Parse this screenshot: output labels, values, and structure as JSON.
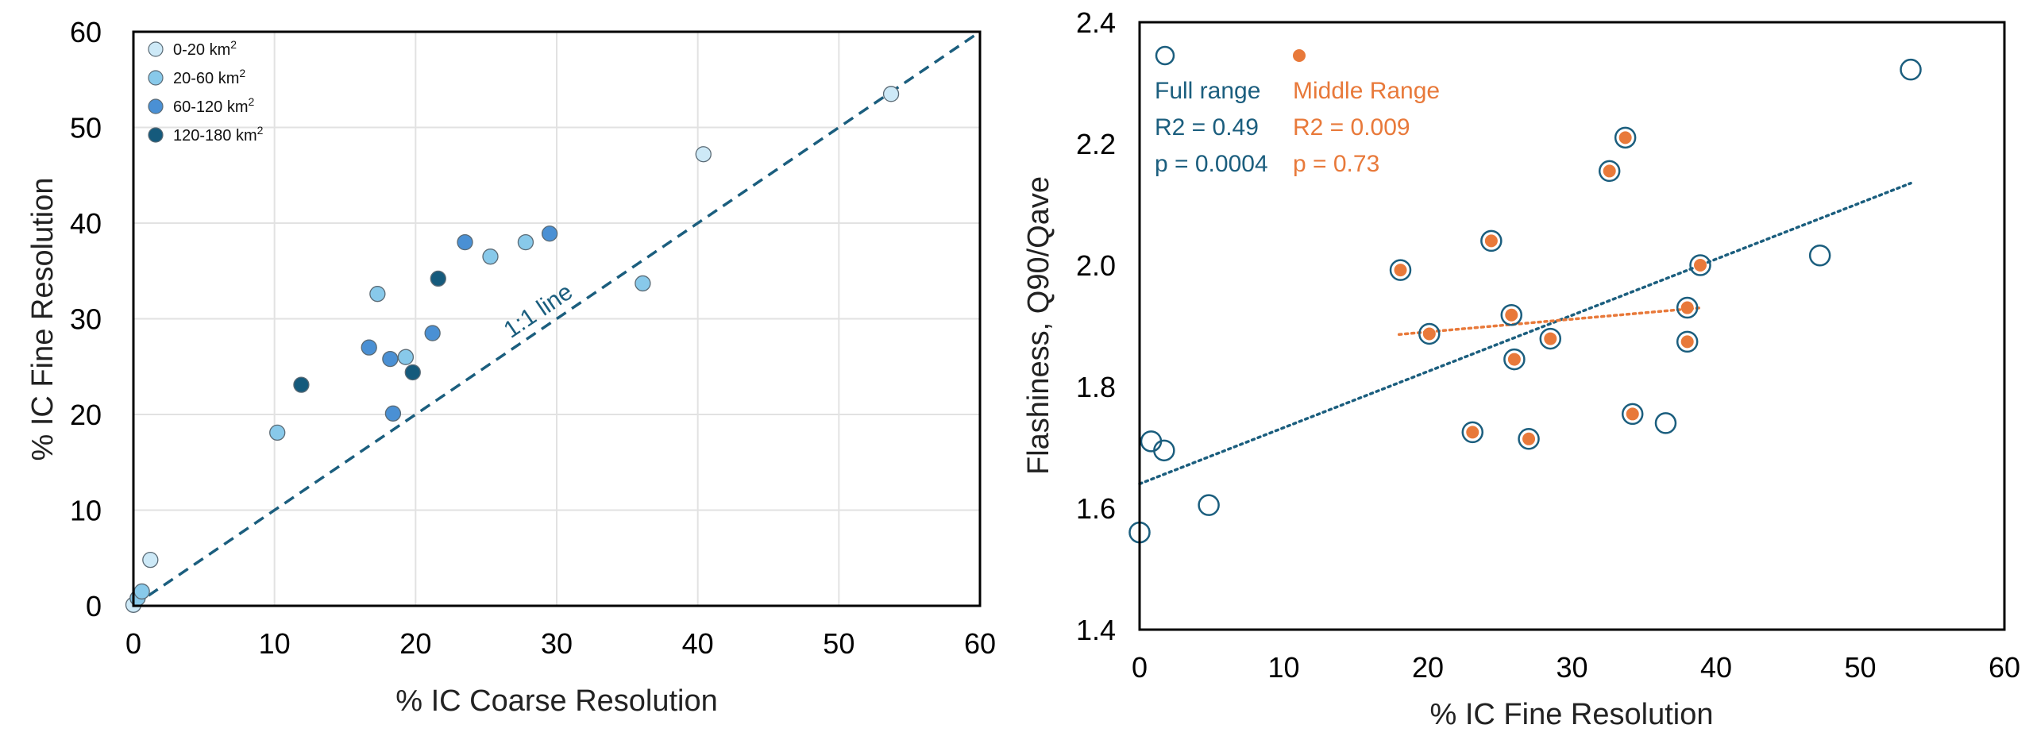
{
  "chart_data": [
    {
      "type": "scatter",
      "xlabel": "% IC Coarse Resolution",
      "ylabel": "% IC Fine Resolution",
      "xlim": [
        0,
        60
      ],
      "ylim": [
        0,
        60
      ],
      "xticks": [
        0,
        10,
        20,
        30,
        40,
        50,
        60
      ],
      "yticks": [
        0,
        10,
        20,
        30,
        40,
        50,
        60
      ],
      "grid": true,
      "legend_position": "top-left",
      "reference_line": {
        "label": "1:1 line",
        "from": [
          0,
          0
        ],
        "to": [
          60,
          60
        ],
        "color": "#1b5e7e"
      },
      "series": [
        {
          "name": "0-20 km",
          "superscript": "2",
          "color": "#cde9f7",
          "points": [
            [
              0.0,
              0.1
            ],
            [
              1.2,
              4.8
            ],
            [
              40.4,
              47.2
            ],
            [
              53.7,
              53.5
            ]
          ]
        },
        {
          "name": "20-60 km",
          "superscript": "2",
          "color": "#88c9ea",
          "points": [
            [
              0.3,
              0.8
            ],
            [
              0.6,
              1.5
            ],
            [
              10.2,
              18.1
            ],
            [
              17.3,
              32.6
            ],
            [
              19.3,
              26.0
            ],
            [
              25.3,
              36.5
            ],
            [
              27.8,
              38.0
            ],
            [
              36.1,
              33.7
            ]
          ]
        },
        {
          "name": "60-120 km",
          "superscript": "2",
          "color": "#4a90d4",
          "points": [
            [
              16.7,
              27.0
            ],
            [
              18.2,
              25.8
            ],
            [
              18.4,
              20.1
            ],
            [
              21.2,
              28.5
            ],
            [
              23.5,
              38.0
            ],
            [
              29.5,
              38.9
            ]
          ]
        },
        {
          "name": "120-180 km",
          "superscript": "2",
          "color": "#155a7c",
          "points": [
            [
              11.9,
              23.1
            ],
            [
              19.8,
              24.4
            ],
            [
              21.6,
              34.2
            ]
          ]
        }
      ]
    },
    {
      "type": "scatter",
      "xlabel": "% IC Fine Resolution",
      "ylabel": "Flashiness, Q90/Qave",
      "xlim": [
        0,
        60
      ],
      "ylim": [
        1.4,
        2.4
      ],
      "xticks": [
        0,
        10,
        20,
        30,
        40,
        50,
        60
      ],
      "yticks": [
        1.4,
        1.6,
        1.8,
        2.0,
        2.2,
        2.4
      ],
      "ytick_labels": [
        "1.4",
        "1.6",
        "1.8",
        "2.0",
        "2.2",
        "2.4"
      ],
      "grid": false,
      "series": [
        {
          "name": "Full range",
          "color": "#1b5e7e",
          "marker": "open-circle",
          "r2_label": "R2 = 0.49",
          "p_label": "p = 0.0004",
          "trend": {
            "from": [
              0,
              1.64
            ],
            "to": [
              53.5,
              2.135
            ]
          },
          "points": [
            [
              0.0,
              1.56
            ],
            [
              0.8,
              1.71
            ],
            [
              1.7,
              1.695
            ],
            [
              4.8,
              1.605
            ],
            [
              18.1,
              1.992
            ],
            [
              20.1,
              1.887
            ],
            [
              23.1,
              1.725
            ],
            [
              24.4,
              2.04
            ],
            [
              25.8,
              1.918
            ],
            [
              26.0,
              1.845
            ],
            [
              27.0,
              1.714
            ],
            [
              28.5,
              1.879
            ],
            [
              32.6,
              2.155
            ],
            [
              33.7,
              2.21
            ],
            [
              34.2,
              1.755
            ],
            [
              36.5,
              1.74
            ],
            [
              38.0,
              1.874
            ],
            [
              38.0,
              1.93
            ],
            [
              38.9,
              2.0
            ],
            [
              47.2,
              2.016
            ],
            [
              53.5,
              2.322
            ]
          ]
        },
        {
          "name": "Middle Range",
          "color": "#e8793a",
          "marker": "filled-circle",
          "r2_label": "R2 = 0.009",
          "p_label": "p = 0.73",
          "trend": {
            "from": [
              18.0,
              1.886
            ],
            "to": [
              39.0,
              1.93
            ]
          },
          "points": [
            [
              18.1,
              1.992
            ],
            [
              20.1,
              1.887
            ],
            [
              23.1,
              1.725
            ],
            [
              24.4,
              2.04
            ],
            [
              25.8,
              1.918
            ],
            [
              26.0,
              1.845
            ],
            [
              27.0,
              1.714
            ],
            [
              28.5,
              1.879
            ],
            [
              32.6,
              2.155
            ],
            [
              33.7,
              2.21
            ],
            [
              34.2,
              1.755
            ],
            [
              38.0,
              1.874
            ],
            [
              38.0,
              1.93
            ],
            [
              38.9,
              2.0
            ]
          ]
        }
      ]
    }
  ]
}
